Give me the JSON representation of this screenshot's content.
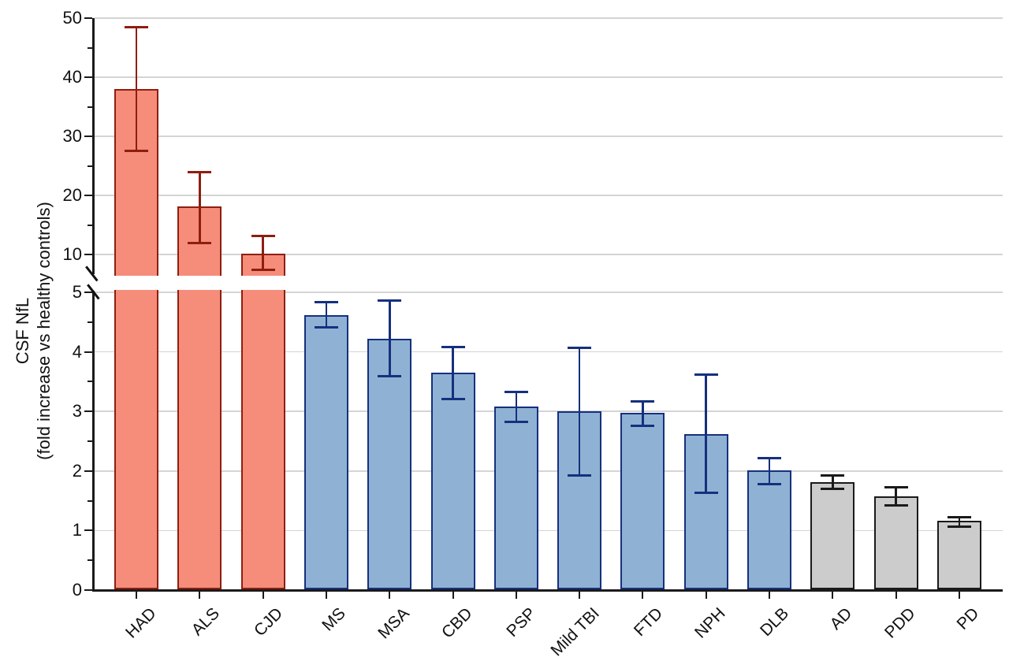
{
  "chart_data": {
    "type": "bar",
    "title": "",
    "ylabel_line1": "CSF NfL",
    "ylabel_line2": "(fold increase vs healthy controls)",
    "categories": [
      "HAD",
      "ALS",
      "CJD",
      "MS",
      "MSA",
      "CBD",
      "PSP",
      "Mild TBI",
      "FTD",
      "NPH",
      "DLB",
      "AD",
      "PDD",
      "PD"
    ],
    "values": [
      38.0,
      18.1,
      10.1,
      4.62,
      4.22,
      3.65,
      3.08,
      3.0,
      2.97,
      2.62,
      2.01,
      1.81,
      1.57,
      1.16
    ],
    "error_low": [
      27.5,
      12.0,
      7.4,
      4.41,
      3.59,
      3.21,
      2.82,
      1.93,
      2.76,
      1.63,
      1.78,
      1.7,
      1.42,
      1.07
    ],
    "error_high": [
      48.5,
      24.0,
      13.1,
      4.83,
      4.86,
      4.08,
      3.33,
      4.07,
      3.17,
      3.62,
      2.22,
      1.92,
      1.73,
      1.23
    ],
    "bar_groups": [
      "salmon",
      "salmon",
      "salmon",
      "blue",
      "blue",
      "blue",
      "blue",
      "blue",
      "blue",
      "blue",
      "blue",
      "gray",
      "gray",
      "gray"
    ],
    "group_colors": {
      "salmon": {
        "fill": "#F68D7A",
        "stroke": "#8E1E10"
      },
      "blue": {
        "fill": "#8FB2D4",
        "stroke": "#16307E"
      },
      "gray": {
        "fill": "#CCCCCC",
        "stroke": "#1A1A1A"
      }
    },
    "axis": {
      "break_between": [
        5,
        6
      ],
      "lower_range": [
        0,
        5
      ],
      "upper_range": [
        6,
        50
      ],
      "lower_major_ticks": [
        0,
        1,
        2,
        3,
        4,
        5
      ],
      "lower_minor_ticks": [
        0.5,
        1.5,
        2.5,
        3.5,
        4.5
      ],
      "upper_major_ticks": [
        10,
        20,
        30,
        40,
        50
      ],
      "upper_minor_ticks": [
        15,
        25,
        35,
        45
      ],
      "grid": true
    },
    "style": {
      "background": "#FFFFFF",
      "gridline_color": "#D4D4D4",
      "axis_color": "#1A1A1A"
    },
    "legend": null
  }
}
